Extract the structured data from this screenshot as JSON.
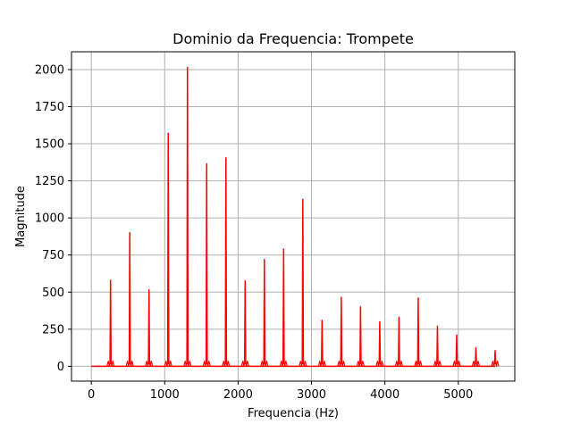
{
  "chart_data": {
    "type": "line",
    "title": "Dominio da Frequencia: Trompete",
    "xlabel": "Frequencia (Hz)",
    "ylabel": "Magnitude",
    "xlim": [
      -270,
      5770
    ],
    "ylim": [
      -100,
      2120
    ],
    "xticks": [
      0,
      1000,
      2000,
      3000,
      4000,
      5000
    ],
    "xtick_labels": [
      "0",
      "1000",
      "2000",
      "3000",
      "4000",
      "5000"
    ],
    "yticks": [
      0,
      250,
      500,
      750,
      1000,
      1250,
      1500,
      1750,
      2000
    ],
    "ytick_labels": [
      "0",
      "250",
      "500",
      "750",
      "1000",
      "1250",
      "1500",
      "1750",
      "2000"
    ],
    "grid": true,
    "series": [
      {
        "color": "#ff0000",
        "x": [
          0,
          262,
          524,
          786,
          1048,
          1310,
          1572,
          1834,
          2096,
          2358,
          2620,
          2882,
          3144,
          3406,
          3668,
          3930,
          4192,
          4454,
          4716,
          4978,
          5240,
          5502
        ],
        "y": [
          0,
          580,
          900,
          515,
          1570,
          2015,
          1365,
          1405,
          575,
          720,
          790,
          1125,
          310,
          465,
          400,
          300,
          330,
          460,
          270,
          210,
          125,
          105
        ]
      }
    ],
    "colors": {
      "line": "#ff0000",
      "grid": "#b0b0b0",
      "axes": "#000000",
      "background": "#ffffff"
    }
  }
}
